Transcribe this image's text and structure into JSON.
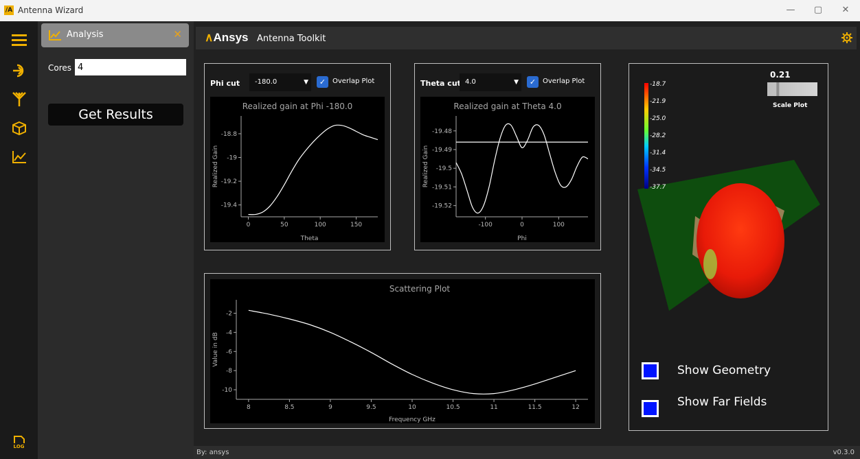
{
  "window": {
    "title": "Antenna Wizard",
    "logo_text": "/A",
    "minimize": "—",
    "maximize": "▢",
    "close": "✕"
  },
  "iconbar": {
    "items": [
      "menu-icon",
      "import-icon",
      "antenna-icon",
      "cube-icon",
      "chart-icon"
    ],
    "log_label": "LOG"
  },
  "left_panel": {
    "tab": {
      "label": "Analysis",
      "close": "✕"
    },
    "cores": {
      "label": "Cores",
      "value": "4"
    },
    "get_results_label": "Get Results"
  },
  "header": {
    "brand": "Ansys",
    "app_title": "Antenna Toolkit"
  },
  "phi_panel": {
    "label": "Phi cut",
    "select_value": "-180.0",
    "overlap_label": "Overlap Plot"
  },
  "theta_panel": {
    "label": "Theta cut",
    "select_value": "4.0",
    "overlap_label": "Overlap Plot"
  },
  "phi_plot": {
    "title": "Realized gain at Phi -180.0",
    "xlabel": "Theta",
    "ylabel": "Realized Gain",
    "xticks": [
      0,
      50,
      100,
      150
    ],
    "xlim": [
      -10,
      180
    ],
    "yticks": [
      -19.4,
      -19.2,
      -19.0,
      -18.8
    ],
    "ylim": [
      -19.5,
      -18.65
    ],
    "x": [
      0,
      10,
      20,
      30,
      40,
      50,
      60,
      70,
      80,
      90,
      100,
      110,
      120,
      130,
      140,
      150,
      160,
      170,
      180
    ],
    "y": [
      -19.48,
      -19.48,
      -19.46,
      -19.41,
      -19.33,
      -19.23,
      -19.12,
      -19.02,
      -18.94,
      -18.87,
      -18.81,
      -18.76,
      -18.73,
      -18.73,
      -18.75,
      -18.78,
      -18.81,
      -18.83,
      -18.85
    ]
  },
  "theta_plot": {
    "title": "Realized gain at Theta 4.0",
    "xlabel": "Phi",
    "ylabel": "Realized Gain",
    "xticks": [
      -100,
      0,
      100
    ],
    "xlim": [
      -180,
      180
    ],
    "yticks": [
      -19.52,
      -19.51,
      -19.5,
      -19.49,
      -19.48
    ],
    "ylim": [
      -19.526,
      -19.472
    ],
    "x": [
      -180,
      -165,
      -150,
      -135,
      -120,
      -105,
      -90,
      -75,
      -60,
      -45,
      -30,
      -15,
      0,
      15,
      30,
      45,
      60,
      75,
      90,
      105,
      120,
      135,
      150,
      165,
      180
    ],
    "y": [
      -19.497,
      -19.503,
      -19.512,
      -19.521,
      -19.524,
      -19.52,
      -19.51,
      -19.496,
      -19.484,
      -19.477,
      -19.477,
      -19.483,
      -19.489,
      -19.485,
      -19.478,
      -19.477,
      -19.482,
      -19.492,
      -19.502,
      -19.509,
      -19.51,
      -19.506,
      -19.499,
      -19.494,
      -19.495
    ],
    "overlap_y": -19.486
  },
  "scatter_plot": {
    "title": "Scattering Plot",
    "xlabel": "Frequency GHz",
    "ylabel": "Value in dB",
    "xticks": [
      8,
      8.5,
      9,
      9.5,
      10,
      10.5,
      11,
      11.5,
      12
    ],
    "xlim": [
      7.85,
      12.15
    ],
    "yticks": [
      -10,
      -8,
      -6,
      -4,
      -2
    ],
    "ylim": [
      -11,
      -0.6
    ],
    "x": [
      8,
      8.25,
      8.5,
      8.75,
      9,
      9.25,
      9.5,
      9.75,
      10,
      10.25,
      10.5,
      10.75,
      11,
      11.25,
      11.5,
      11.75,
      12
    ],
    "y": [
      -1.7,
      -2.1,
      -2.6,
      -3.2,
      -4.0,
      -5.0,
      -6.1,
      -7.3,
      -8.4,
      -9.3,
      -10.0,
      -10.4,
      -10.4,
      -10.0,
      -9.4,
      -8.7,
      -8.0
    ]
  },
  "far_field": {
    "colorbar_labels": [
      "-18.7",
      "-21.9",
      "-25.0",
      "-28.2",
      "-31.4",
      "-34.5",
      "-37.7"
    ],
    "scale_value": "0.21",
    "scale_fraction": 0.21,
    "scale_label": "Scale Plot",
    "show_geometry": "Show Geometry",
    "show_far_fields": "Show Far Fields"
  },
  "footer": {
    "by": "By: ansys",
    "version": "v0.3.0"
  }
}
